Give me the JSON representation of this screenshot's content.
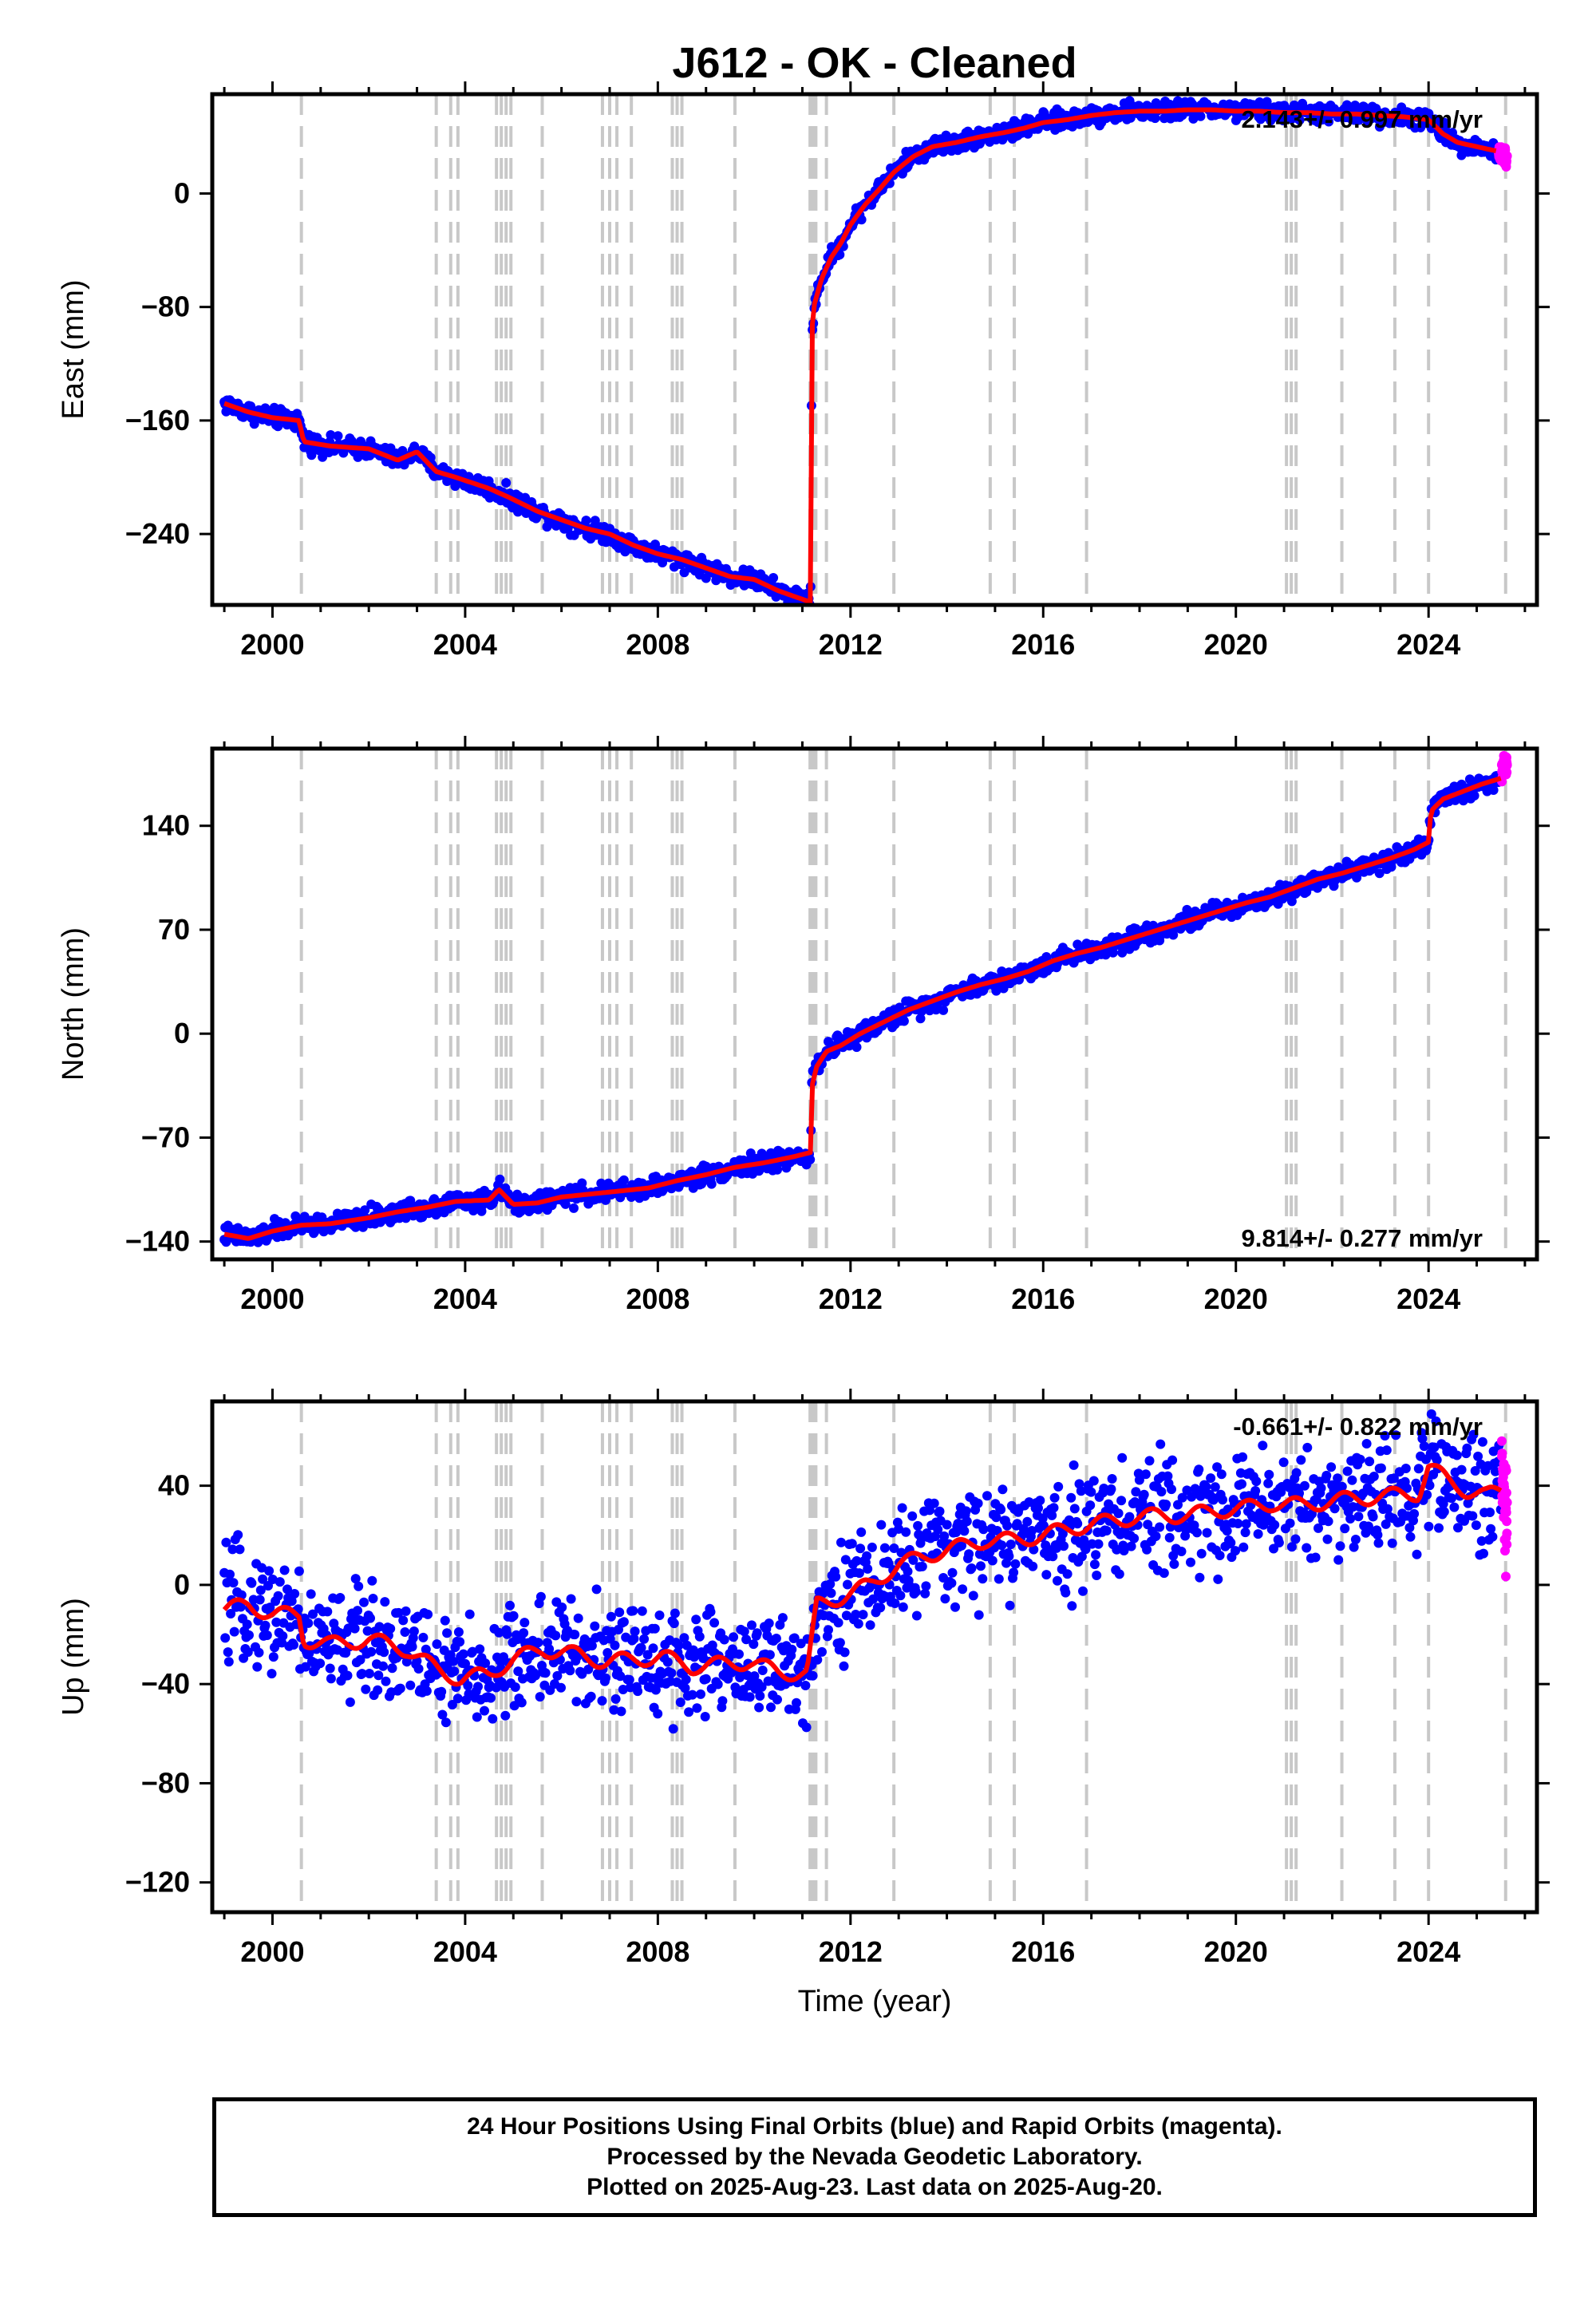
{
  "title": "J612  - OK - Cleaned",
  "footer": {
    "line1": "24 Hour Positions Using Final Orbits (blue) and Rapid Orbits (magenta).",
    "line2": "Processed by the Nevada Geodetic Laboratory.",
    "line3": "Plotted on 2025-Aug-23. Last data on 2025-Aug-20."
  },
  "colors": {
    "final_orbits": "#0000ff",
    "rapid_orbits": "#ff00ff",
    "model": "#ff0000",
    "event_lines": "#c8c8c8"
  },
  "chart_data": [
    {
      "type": "scatter",
      "ylabel": "East (mm)",
      "xlabel": "",
      "xlim": [
        1998.75,
        2026.25
      ],
      "ylim": [
        -290,
        70
      ],
      "xticks": [
        2000,
        2004,
        2008,
        2012,
        2016,
        2020,
        2024
      ],
      "yticks": [
        0,
        -80,
        -160,
        -240
      ],
      "rate_label": "2.143+/- 0.997 mm/yr",
      "rate_position": "top-right",
      "event_lines": [
        2000.6,
        2003.4,
        2003.7,
        2003.85,
        2004.65,
        2004.75,
        2004.85,
        2004.95,
        2005.6,
        2006.85,
        2007.0,
        2007.15,
        2007.45,
        2008.3,
        2008.4,
        2008.5,
        2009.6,
        2011.16,
        2011.22,
        2011.28,
        2011.5,
        2012.9,
        2014.9,
        2015.4,
        2016.9,
        2021.05,
        2021.15,
        2021.25,
        2022.2,
        2023.3,
        2024.0,
        2025.6
      ],
      "series": [
        {
          "name": "Final orbits",
          "color": "#0000ff",
          "x": [
            1999.0,
            1999.5,
            2000.0,
            2000.55,
            2000.65,
            2001.2,
            2002.0,
            2002.6,
            2003.0,
            2003.4,
            2003.8,
            2004.5,
            2004.9,
            2005.5,
            2006.0,
            2006.5,
            2007.0,
            2007.5,
            2008.0,
            2008.5,
            2009.0,
            2009.5,
            2010.0,
            2010.5,
            2011.0,
            2011.17,
            2011.2,
            2011.25,
            2011.4,
            2011.6,
            2011.8,
            2012.0,
            2012.3,
            2012.6,
            2012.9,
            2013.3,
            2013.7,
            2014.2,
            2014.7,
            2015.2,
            2015.6,
            2016.0,
            2016.5,
            2017.0,
            2017.5,
            2018.0,
            2018.5,
            2019.0,
            2019.5,
            2020.0,
            2020.5,
            2021.0,
            2021.5,
            2022.0,
            2022.5,
            2023.0,
            2023.5,
            2024.0,
            2024.3,
            2024.6,
            2025.0,
            2025.4
          ],
          "y": [
            -148,
            -154,
            -158,
            -160,
            -175,
            -178,
            -180,
            -188,
            -182,
            -196,
            -200,
            -208,
            -214,
            -224,
            -230,
            -236,
            -240,
            -248,
            -254,
            -258,
            -264,
            -270,
            -272,
            -280,
            -286,
            -288,
            -95,
            -78,
            -60,
            -45,
            -35,
            -22,
            -8,
            3,
            15,
            26,
            33,
            36,
            40,
            43,
            46,
            50,
            52,
            55,
            57,
            58,
            58,
            59,
            59,
            58,
            58,
            57,
            57,
            56,
            56,
            55,
            54,
            52,
            42,
            36,
            33,
            30
          ]
        },
        {
          "name": "Rapid orbits",
          "color": "#ff00ff",
          "x": [
            2025.45,
            2025.52,
            2025.58,
            2025.63
          ],
          "y": [
            29,
            28,
            27,
            25
          ]
        }
      ]
    },
    {
      "type": "scatter",
      "ylabel": "North (mm)",
      "xlabel": "",
      "xlim": [
        1998.75,
        2026.25
      ],
      "ylim": [
        -152,
        192
      ],
      "xticks": [
        2000,
        2004,
        2008,
        2012,
        2016,
        2020,
        2024
      ],
      "yticks": [
        140,
        70,
        0,
        -70,
        -140
      ],
      "rate_label": "9.814+/- 0.277 mm/yr",
      "rate_position": "bottom-right",
      "event_lines": [
        2000.6,
        2003.4,
        2003.7,
        2003.85,
        2004.65,
        2004.75,
        2004.85,
        2004.95,
        2005.6,
        2006.85,
        2007.0,
        2007.15,
        2007.45,
        2008.3,
        2008.4,
        2008.5,
        2009.6,
        2011.16,
        2011.22,
        2011.28,
        2011.5,
        2012.9,
        2014.9,
        2015.4,
        2016.9,
        2021.05,
        2021.15,
        2021.25,
        2022.2,
        2023.3,
        2024.0,
        2025.6
      ],
      "series": [
        {
          "name": "Final orbits",
          "color": "#0000ff",
          "x": [
            1999.0,
            1999.5,
            2000.0,
            2000.6,
            2001.2,
            2002.0,
            2002.6,
            2003.2,
            2003.8,
            2004.5,
            2004.7,
            2005.0,
            2005.5,
            2006.0,
            2006.6,
            2007.2,
            2007.8,
            2008.4,
            2009.0,
            2009.6,
            2010.2,
            2010.8,
            2011.17,
            2011.2,
            2011.3,
            2011.5,
            2011.8,
            2012.2,
            2012.7,
            2013.2,
            2013.7,
            2014.2,
            2014.7,
            2015.2,
            2015.7,
            2016.2,
            2016.7,
            2017.2,
            2017.7,
            2018.2,
            2018.7,
            2019.2,
            2019.7,
            2020.2,
            2020.7,
            2021.2,
            2021.7,
            2022.2,
            2022.7,
            2023.2,
            2023.7,
            2024.0,
            2024.05,
            2024.3,
            2024.7,
            2025.1,
            2025.5
          ],
          "y": [
            -135,
            -138,
            -133,
            -129,
            -128,
            -124,
            -120,
            -117,
            -113,
            -112,
            -105,
            -115,
            -114,
            -110,
            -108,
            -106,
            -104,
            -99,
            -95,
            -90,
            -87,
            -83,
            -80,
            -35,
            -22,
            -12,
            -8,
            0,
            8,
            16,
            22,
            28,
            33,
            37,
            42,
            49,
            54,
            58,
            63,
            68,
            73,
            78,
            83,
            88,
            92,
            98,
            104,
            108,
            113,
            118,
            124,
            129,
            150,
            158,
            163,
            168,
            172
          ]
        },
        {
          "name": "Rapid orbits",
          "color": "#ff00ff",
          "x": [
            2025.52,
            2025.58,
            2025.63
          ],
          "y": [
            178,
            180,
            182
          ]
        }
      ]
    },
    {
      "type": "scatter",
      "ylabel": "Up (mm)",
      "xlabel": "Time (year)",
      "xlim": [
        1998.75,
        2026.25
      ],
      "ylim": [
        -132,
        74
      ],
      "xticks": [
        2000,
        2004,
        2008,
        2012,
        2016,
        2020,
        2024
      ],
      "yticks": [
        40,
        0,
        -40,
        -80,
        -120
      ],
      "rate_label": "-0.661+/- 0.822 mm/yr",
      "rate_position": "top-right",
      "event_lines": [
        2000.6,
        2003.4,
        2003.7,
        2003.85,
        2004.65,
        2004.75,
        2004.85,
        2004.95,
        2005.6,
        2006.85,
        2007.0,
        2007.15,
        2007.45,
        2008.3,
        2008.4,
        2008.5,
        2009.6,
        2011.16,
        2011.22,
        2011.28,
        2011.5,
        2012.9,
        2014.9,
        2015.4,
        2016.9,
        2021.05,
        2021.15,
        2021.25,
        2022.2,
        2023.3,
        2024.0,
        2025.6
      ],
      "series": [
        {
          "name": "Final orbits",
          "color": "#0000ff",
          "x": [
            1999.0,
            1999.5,
            2000.0,
            2000.55,
            2000.65,
            2001.2,
            2002.0,
            2002.8,
            2003.4,
            2003.9,
            2004.5,
            2005.0,
            2005.6,
            2006.3,
            2006.9,
            2007.5,
            2008.1,
            2008.7,
            2009.3,
            2009.9,
            2010.5,
            2011.1,
            2011.3,
            2011.8,
            2012.4,
            2013.0,
            2013.6,
            2014.2,
            2014.8,
            2015.4,
            2016.0,
            2016.6,
            2017.2,
            2017.8,
            2018.4,
            2019.0,
            2019.6,
            2020.2,
            2020.8,
            2021.4,
            2022.0,
            2022.6,
            2023.2,
            2023.8,
            2024.0,
            2024.4,
            2024.8,
            2025.2,
            2025.5
          ],
          "y": [
            -10,
            -8,
            -12,
            -12,
            -22,
            -24,
            -22,
            -26,
            -34,
            -38,
            -36,
            -30,
            -26,
            -28,
            -31,
            -30,
            -29,
            -33,
            -32,
            -31,
            -35,
            -36,
            -8,
            -5,
            0,
            8,
            12,
            15,
            18,
            18,
            20,
            23,
            25,
            27,
            28,
            28,
            30,
            31,
            33,
            32,
            34,
            35,
            36,
            37,
            48,
            42,
            38,
            36,
            38
          ]
        },
        {
          "name": "Rapid orbits",
          "color": "#ff00ff",
          "x": [
            2025.52,
            2025.56,
            2025.6,
            2025.63
          ],
          "y": [
            42,
            36,
            30,
            24
          ]
        }
      ]
    }
  ]
}
